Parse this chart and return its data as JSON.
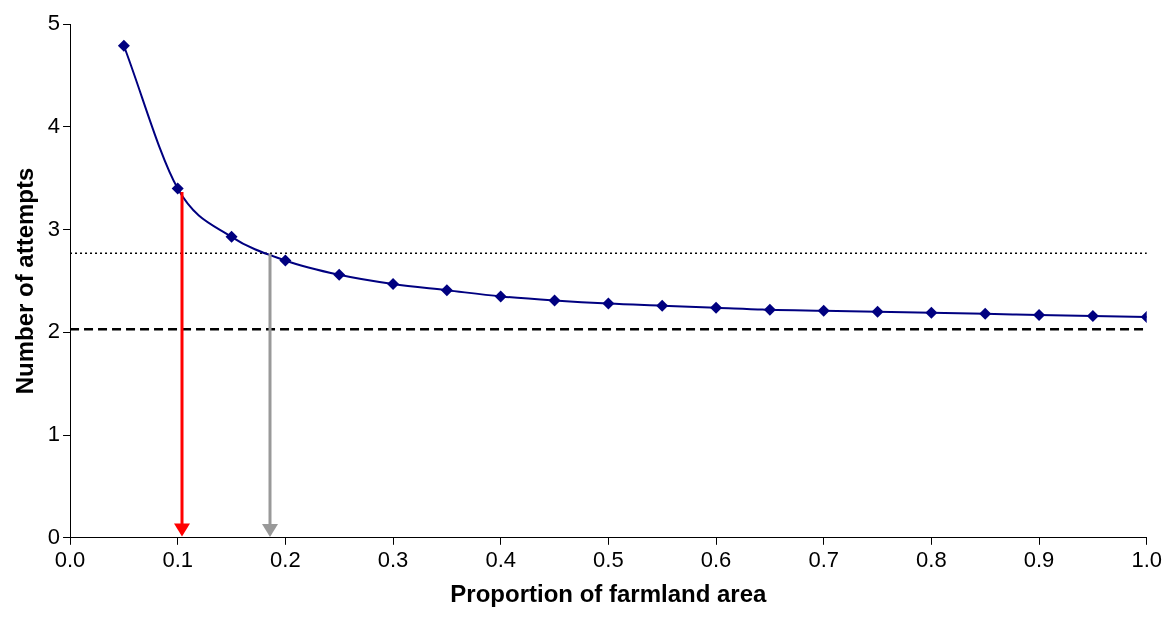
{
  "chart_data": {
    "type": "line",
    "xlabel": "Proportion of farmland area",
    "ylabel": "Number of attempts",
    "x": [
      0.05,
      0.1,
      0.15,
      0.2,
      0.25,
      0.3,
      0.35,
      0.4,
      0.45,
      0.5,
      0.55,
      0.6,
      0.65,
      0.7,
      0.75,
      0.8,
      0.85,
      0.9,
      0.95,
      1.0
    ],
    "series": [
      {
        "color": "#000080",
        "values": [
          4.79,
          3.4,
          2.93,
          2.7,
          2.56,
          2.47,
          2.41,
          2.35,
          2.31,
          2.28,
          2.26,
          2.24,
          2.22,
          2.21,
          2.2,
          2.19,
          2.18,
          2.17,
          2.16,
          2.15
        ]
      }
    ],
    "xlim": [
      0,
      1
    ],
    "ylim": [
      0,
      5
    ],
    "xticks": [
      {
        "value": 0,
        "label": "0.0"
      },
      {
        "value": 0.1,
        "label": "0.1"
      },
      {
        "value": 0.2,
        "label": "0.2"
      },
      {
        "value": 0.3,
        "label": "0.3"
      },
      {
        "value": 0.4,
        "label": "0.4"
      },
      {
        "value": 0.5,
        "label": "0.5"
      },
      {
        "value": 0.6,
        "label": "0.6"
      },
      {
        "value": 0.7,
        "label": "0.7"
      },
      {
        "value": 0.8,
        "label": "0.8"
      },
      {
        "value": 0.9,
        "label": "0.9"
      },
      {
        "value": 1,
        "label": "1.0"
      }
    ],
    "yticks": [
      0,
      1,
      2,
      3,
      4,
      5
    ],
    "ref_lines": [
      {
        "axis": "y",
        "value": 2.77,
        "color": "#000000",
        "line_style": "dotted"
      },
      {
        "axis": "y",
        "value": 2.03,
        "color": "#000000",
        "line_style": "dashed"
      },
      {
        "axis": "x",
        "value": 0.104,
        "color": "#ff0000",
        "line_style": "solid"
      },
      {
        "axis": "x",
        "value": 0.186,
        "color": "#999999",
        "line_style": "solid"
      }
    ],
    "marker": "diamond",
    "line_style": "solid",
    "grid": false,
    "legend": false
  }
}
